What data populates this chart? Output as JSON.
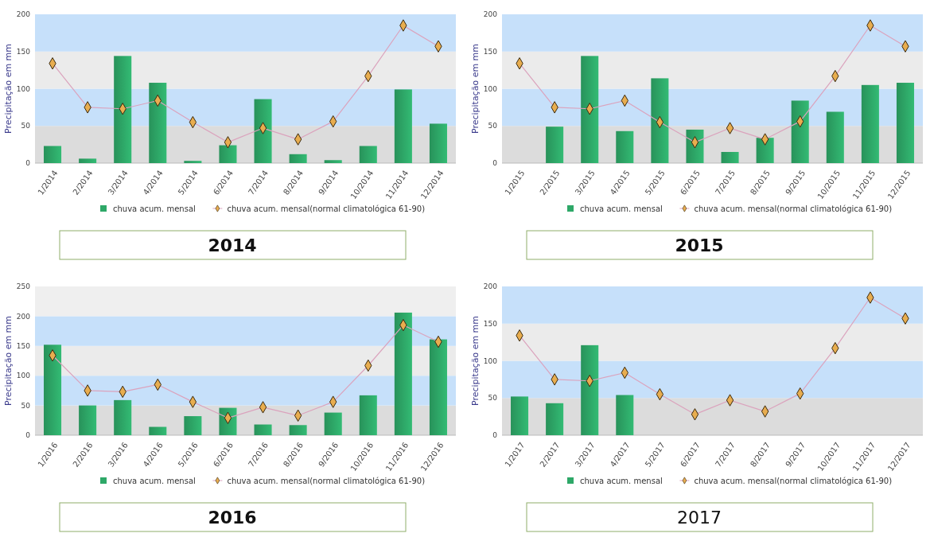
{
  "chart_data": [
    {
      "type": "bar",
      "title": "2014",
      "ylabel": "Precipitação em mm",
      "categories": [
        "1/2014",
        "2/2014",
        "3/2014",
        "4/2014",
        "5/2014",
        "6/2014",
        "7/2014",
        "8/2014",
        "9/2014",
        "10/2014",
        "11/2014",
        "12/2014"
      ],
      "series": [
        {
          "name": "chuva acum. mensal",
          "color": "#2ea868",
          "values": [
            23,
            6,
            144,
            108,
            3,
            24,
            86,
            12,
            4,
            23,
            99,
            53
          ]
        },
        {
          "name": "chuva acum. mensal(normal climatológica 61-90)",
          "type": "line",
          "color": "#e8ad4f",
          "values": [
            134,
            75,
            73,
            84,
            55,
            28,
            47,
            32,
            56,
            117,
            185,
            157
          ]
        }
      ],
      "ylim": [
        0,
        200
      ],
      "yticks": [
        0,
        50,
        100,
        150,
        200
      ],
      "marker": "diamond",
      "legend": "bottom",
      "bands": [
        {
          "axis": "y",
          "from": 0,
          "to": 50,
          "color": "#dcdcdc"
        },
        {
          "axis": "y",
          "from": 50,
          "to": 100,
          "color": "#c6e0fa"
        },
        {
          "axis": "y",
          "from": 100,
          "to": 150,
          "color": "#ebebeb"
        },
        {
          "axis": "y",
          "from": 150,
          "to": 200,
          "color": "#c6e0fa"
        }
      ]
    },
    {
      "type": "bar",
      "title": "2015",
      "ylabel": "Precipitação em mm",
      "categories": [
        "1/2015",
        "2/2015",
        "3/2015",
        "4/2015",
        "5/2015",
        "6/2015",
        "7/2015",
        "8/2015",
        "9/2015",
        "10/2015",
        "11/2015",
        "12/2015"
      ],
      "series": [
        {
          "name": "chuva acum. mensal",
          "color": "#2ea868",
          "values": [
            null,
            49,
            144,
            43,
            114,
            45,
            15,
            34,
            84,
            69,
            105,
            108
          ]
        },
        {
          "name": "chuva acum. mensal(normal climatológica 61-90)",
          "type": "line",
          "color": "#e8ad4f",
          "values": [
            134,
            75,
            73,
            84,
            55,
            28,
            47,
            32,
            56,
            117,
            185,
            157
          ]
        }
      ],
      "ylim": [
        0,
        200
      ],
      "yticks": [
        0,
        50,
        100,
        150,
        200
      ],
      "marker": "diamond",
      "legend": "bottom",
      "bands": [
        {
          "axis": "y",
          "from": 0,
          "to": 50,
          "color": "#dcdcdc"
        },
        {
          "axis": "y",
          "from": 50,
          "to": 100,
          "color": "#c6e0fa"
        },
        {
          "axis": "y",
          "from": 100,
          "to": 150,
          "color": "#ebebeb"
        },
        {
          "axis": "y",
          "from": 150,
          "to": 200,
          "color": "#c6e0fa"
        }
      ]
    },
    {
      "type": "bar",
      "title": "2016",
      "ylabel": "Precipitação em mm",
      "categories": [
        "1/2016",
        "2/2016",
        "3/2016",
        "4/2016",
        "5/2016",
        "6/2016",
        "7/2016",
        "8/2016",
        "9/2016",
        "10/2016",
        "11/2016",
        "12/2016"
      ],
      "series": [
        {
          "name": "chuva acum. mensal",
          "color": "#2ea868",
          "values": [
            152,
            50,
            59,
            14,
            32,
            46,
            18,
            17,
            38,
            67,
            206,
            161
          ]
        },
        {
          "name": "chuva acum. mensal(normal climatológica 61-90)",
          "type": "line",
          "color": "#e8ad4f",
          "values": [
            134,
            75,
            73,
            85,
            56,
            29,
            47,
            33,
            56,
            117,
            185,
            157
          ]
        }
      ],
      "ylim": [
        0,
        250
      ],
      "yticks": [
        0,
        50,
        100,
        150,
        200,
        250
      ],
      "marker": "diamond",
      "legend": "bottom",
      "bands": [
        {
          "axis": "y",
          "from": 0,
          "to": 50,
          "color": "#dcdcdc"
        },
        {
          "axis": "y",
          "from": 50,
          "to": 100,
          "color": "#c6e0fa"
        },
        {
          "axis": "y",
          "from": 100,
          "to": 150,
          "color": "#ebebeb"
        },
        {
          "axis": "y",
          "from": 150,
          "to": 200,
          "color": "#c6e0fa"
        },
        {
          "axis": "y",
          "from": 200,
          "to": 250,
          "color": "#efefef"
        }
      ]
    },
    {
      "type": "bar",
      "title": "2017",
      "ylabel": "Precipitação em mm",
      "categories": [
        "1/2017",
        "2/2017",
        "3/2017",
        "4/2017",
        "5/2017",
        "6/2017",
        "7/2017",
        "8/2017",
        "9/2017",
        "10/2017",
        "11/2017",
        "12/2017"
      ],
      "series": [
        {
          "name": "chuva acum. mensal",
          "color": "#2ea868",
          "values": [
            52,
            43,
            121,
            54,
            null,
            null,
            null,
            null,
            null,
            null,
            null,
            null
          ]
        },
        {
          "name": "chuva acum. mensal(normal climatológica 61-90)",
          "type": "line",
          "color": "#e8ad4f",
          "values": [
            134,
            75,
            73,
            84,
            55,
            28,
            47,
            32,
            56,
            117,
            185,
            157
          ]
        }
      ],
      "ylim": [
        0,
        200
      ],
      "yticks": [
        0,
        50,
        100,
        150,
        200
      ],
      "marker": "diamond",
      "legend": "bottom",
      "bands": [
        {
          "axis": "y",
          "from": 0,
          "to": 50,
          "color": "#dcdcdc"
        },
        {
          "axis": "y",
          "from": 50,
          "to": 100,
          "color": "#c6e0fa"
        },
        {
          "axis": "y",
          "from": 100,
          "to": 150,
          "color": "#ebebeb"
        },
        {
          "axis": "y",
          "from": 150,
          "to": 200,
          "color": "#c6e0fa"
        }
      ]
    }
  ]
}
